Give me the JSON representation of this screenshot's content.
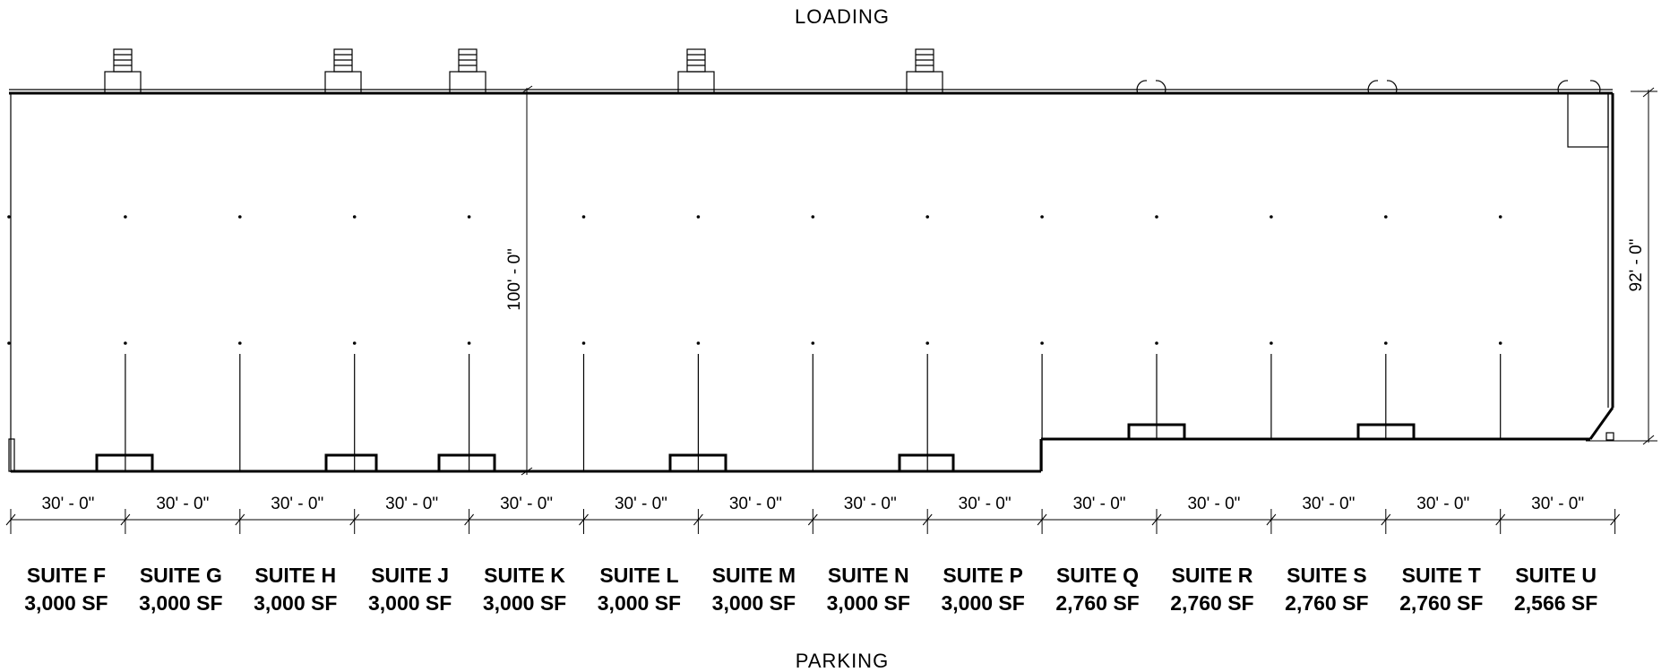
{
  "labels": {
    "top": "LOADING",
    "bottom": "PARKING"
  },
  "dimensions": {
    "depth_left": "100' - 0\"",
    "depth_right": "92' - 0\""
  },
  "suites": [
    {
      "name": "SUITE F",
      "area": "3,000 SF",
      "width": "30' - 0\""
    },
    {
      "name": "SUITE G",
      "area": "3,000 SF",
      "width": "30' - 0\""
    },
    {
      "name": "SUITE H",
      "area": "3,000 SF",
      "width": "30' - 0\""
    },
    {
      "name": "SUITE J",
      "area": "3,000 SF",
      "width": "30' - 0\""
    },
    {
      "name": "SUITE K",
      "area": "3,000 SF",
      "width": "30' - 0\""
    },
    {
      "name": "SUITE L",
      "area": "3,000 SF",
      "width": "30' - 0\""
    },
    {
      "name": "SUITE M",
      "area": "3,000 SF",
      "width": "30' - 0\""
    },
    {
      "name": "SUITE N",
      "area": "3,000 SF",
      "width": "30' - 0\""
    },
    {
      "name": "SUITE P",
      "area": "3,000 SF",
      "width": "30' - 0\""
    },
    {
      "name": "SUITE Q",
      "area": "2,760 SF",
      "width": "30' - 0\""
    },
    {
      "name": "SUITE R",
      "area": "2,760 SF",
      "width": "30' - 0\""
    },
    {
      "name": "SUITE S",
      "area": "2,760 SF",
      "width": "30' - 0\""
    },
    {
      "name": "SUITE T",
      "area": "2,760 SF",
      "width": "30' - 0\""
    },
    {
      "name": "SUITE U",
      "area": "2,566 SF",
      "width": "30' - 0\""
    }
  ]
}
